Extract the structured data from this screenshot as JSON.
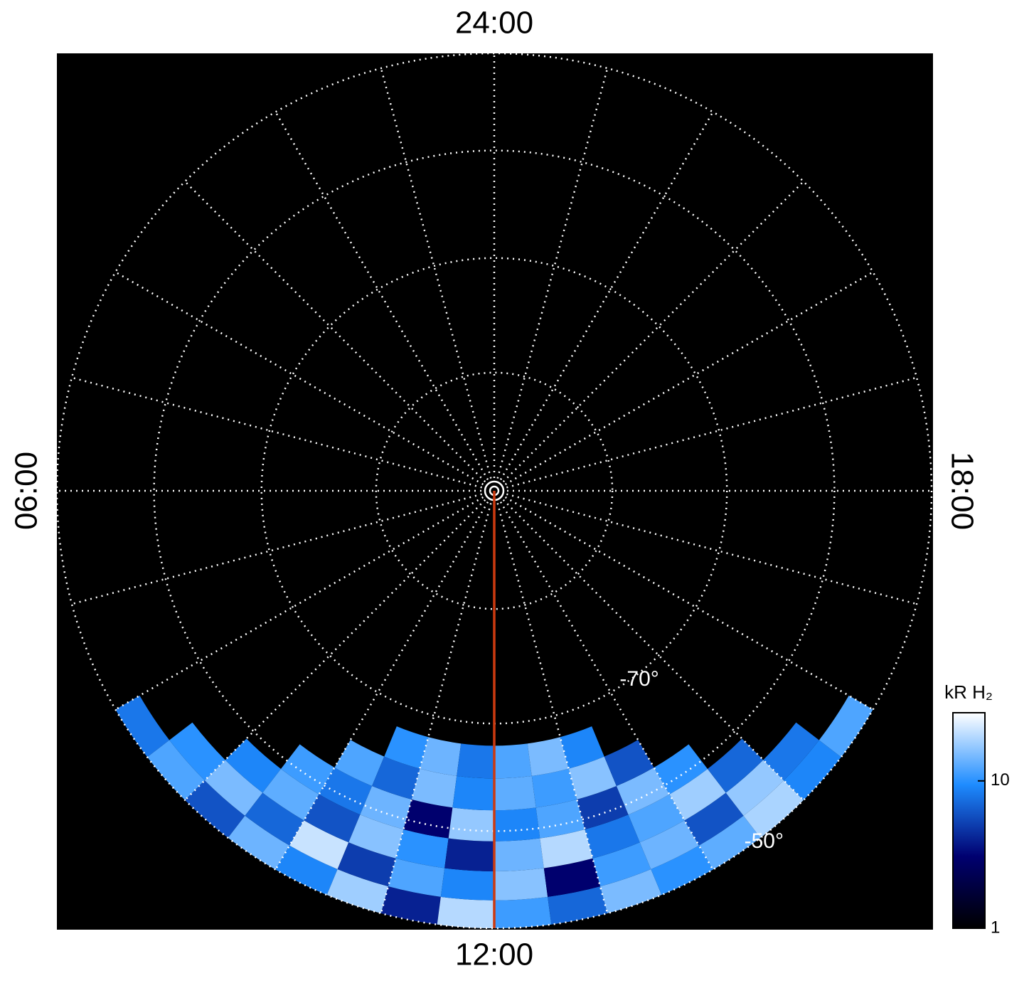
{
  "chart_data": {
    "type": "polar-image",
    "lt_ticks": [
      {
        "value": 0,
        "label": "24:00"
      },
      {
        "value": 6,
        "label": "06:00"
      },
      {
        "value": 12,
        "label": "12:00"
      },
      {
        "value": 18,
        "label": "18:00"
      }
    ],
    "lt_grid": [
      0,
      1,
      2,
      3,
      4,
      5,
      6,
      7,
      8,
      9,
      10,
      11,
      12,
      13,
      14,
      15,
      16,
      17,
      18,
      19,
      20,
      21,
      22,
      23
    ],
    "lat_lim": [
      -90,
      -50
    ],
    "lat_rings": [
      -80,
      -70,
      -60,
      -50
    ],
    "ring_labels": [
      {
        "value": -70,
        "label": "-70°"
      },
      {
        "value": -50,
        "label": "-50°"
      }
    ],
    "reference_line": {
      "lt": 12,
      "color": "#cc3a10"
    },
    "emission": {
      "lt_bins": [
        8,
        8.5,
        9,
        9.5,
        10,
        10.5,
        11,
        11.5,
        12,
        12.5,
        13,
        13.5,
        14,
        14.5,
        15,
        15.5,
        16
      ],
      "lat_bins": [
        -50,
        -53,
        -56,
        -59,
        -62,
        -65,
        -68
      ],
      "values": [
        [
          8,
          12,
          6,
          14,
          9,
          18,
          4,
          20,
          11,
          7,
          15,
          10,
          13,
          19,
          9,
          12
        ],
        [
          null,
          10,
          15,
          7,
          22,
          5,
          12,
          9,
          16,
          3,
          11,
          14,
          6,
          17,
          8,
          null
        ],
        [
          null,
          null,
          9,
          13,
          6,
          16,
          10,
          4,
          14,
          20,
          8,
          12,
          18,
          7,
          null,
          null
        ],
        [
          null,
          null,
          null,
          11,
          8,
          14,
          3,
          17,
          9,
          12,
          5,
          15,
          10,
          null,
          null,
          null
        ],
        [
          null,
          null,
          null,
          null,
          12,
          7,
          15,
          9,
          13,
          11,
          16,
          6,
          null,
          null,
          null,
          null
        ],
        [
          null,
          null,
          null,
          null,
          null,
          10,
          14,
          8,
          12,
          15,
          9,
          null,
          null,
          null,
          null,
          null
        ]
      ]
    },
    "colorbar": {
      "label": "kR H₂",
      "clim": [
        1,
        29
      ],
      "log": true,
      "ticks": [
        1,
        10
      ],
      "colormap": [
        "#000000",
        "#000070",
        "#1e8cff",
        "#ffffff"
      ]
    }
  }
}
